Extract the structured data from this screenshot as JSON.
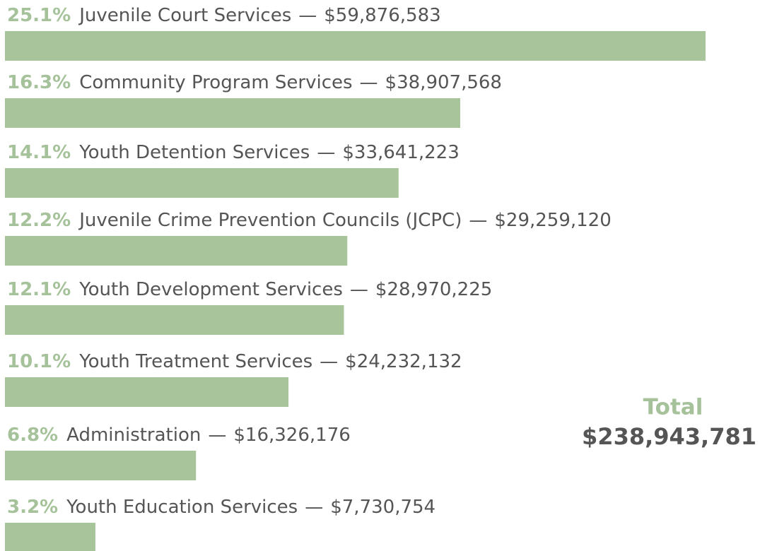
{
  "chart_data": {
    "type": "bar",
    "orientation": "horizontal",
    "color": "#a7c49b",
    "categories": [
      "Juvenile Court Services",
      "Community Program Services",
      "Youth Detention Services",
      "Juvenile Crime Prevention Councils (JCPC)",
      "Youth Development Services",
      "Youth Treatment Services",
      "Administration",
      "Youth Education Services"
    ],
    "values": [
      59876583,
      38907568,
      33641223,
      29259120,
      28970225,
      24232132,
      16326176,
      7730754
    ],
    "value_labels": [
      "$59,876,583",
      "$38,907,568",
      "$33,641,223",
      "$29,259,120",
      "$28,970,225",
      "$24,232,132",
      "$16,326,176",
      "$7,730,754"
    ],
    "shares": [
      25.1,
      16.3,
      14.1,
      12.2,
      12.1,
      10.1,
      6.8,
      3.2
    ],
    "share_labels": [
      "25.1%",
      "16.3%",
      "14.1%",
      "12.2%",
      "12.1%",
      "10.1%",
      "6.8%",
      "3.2%"
    ],
    "separator": "—",
    "annotations": [
      "Total",
      "$238,943,781"
    ]
  }
}
